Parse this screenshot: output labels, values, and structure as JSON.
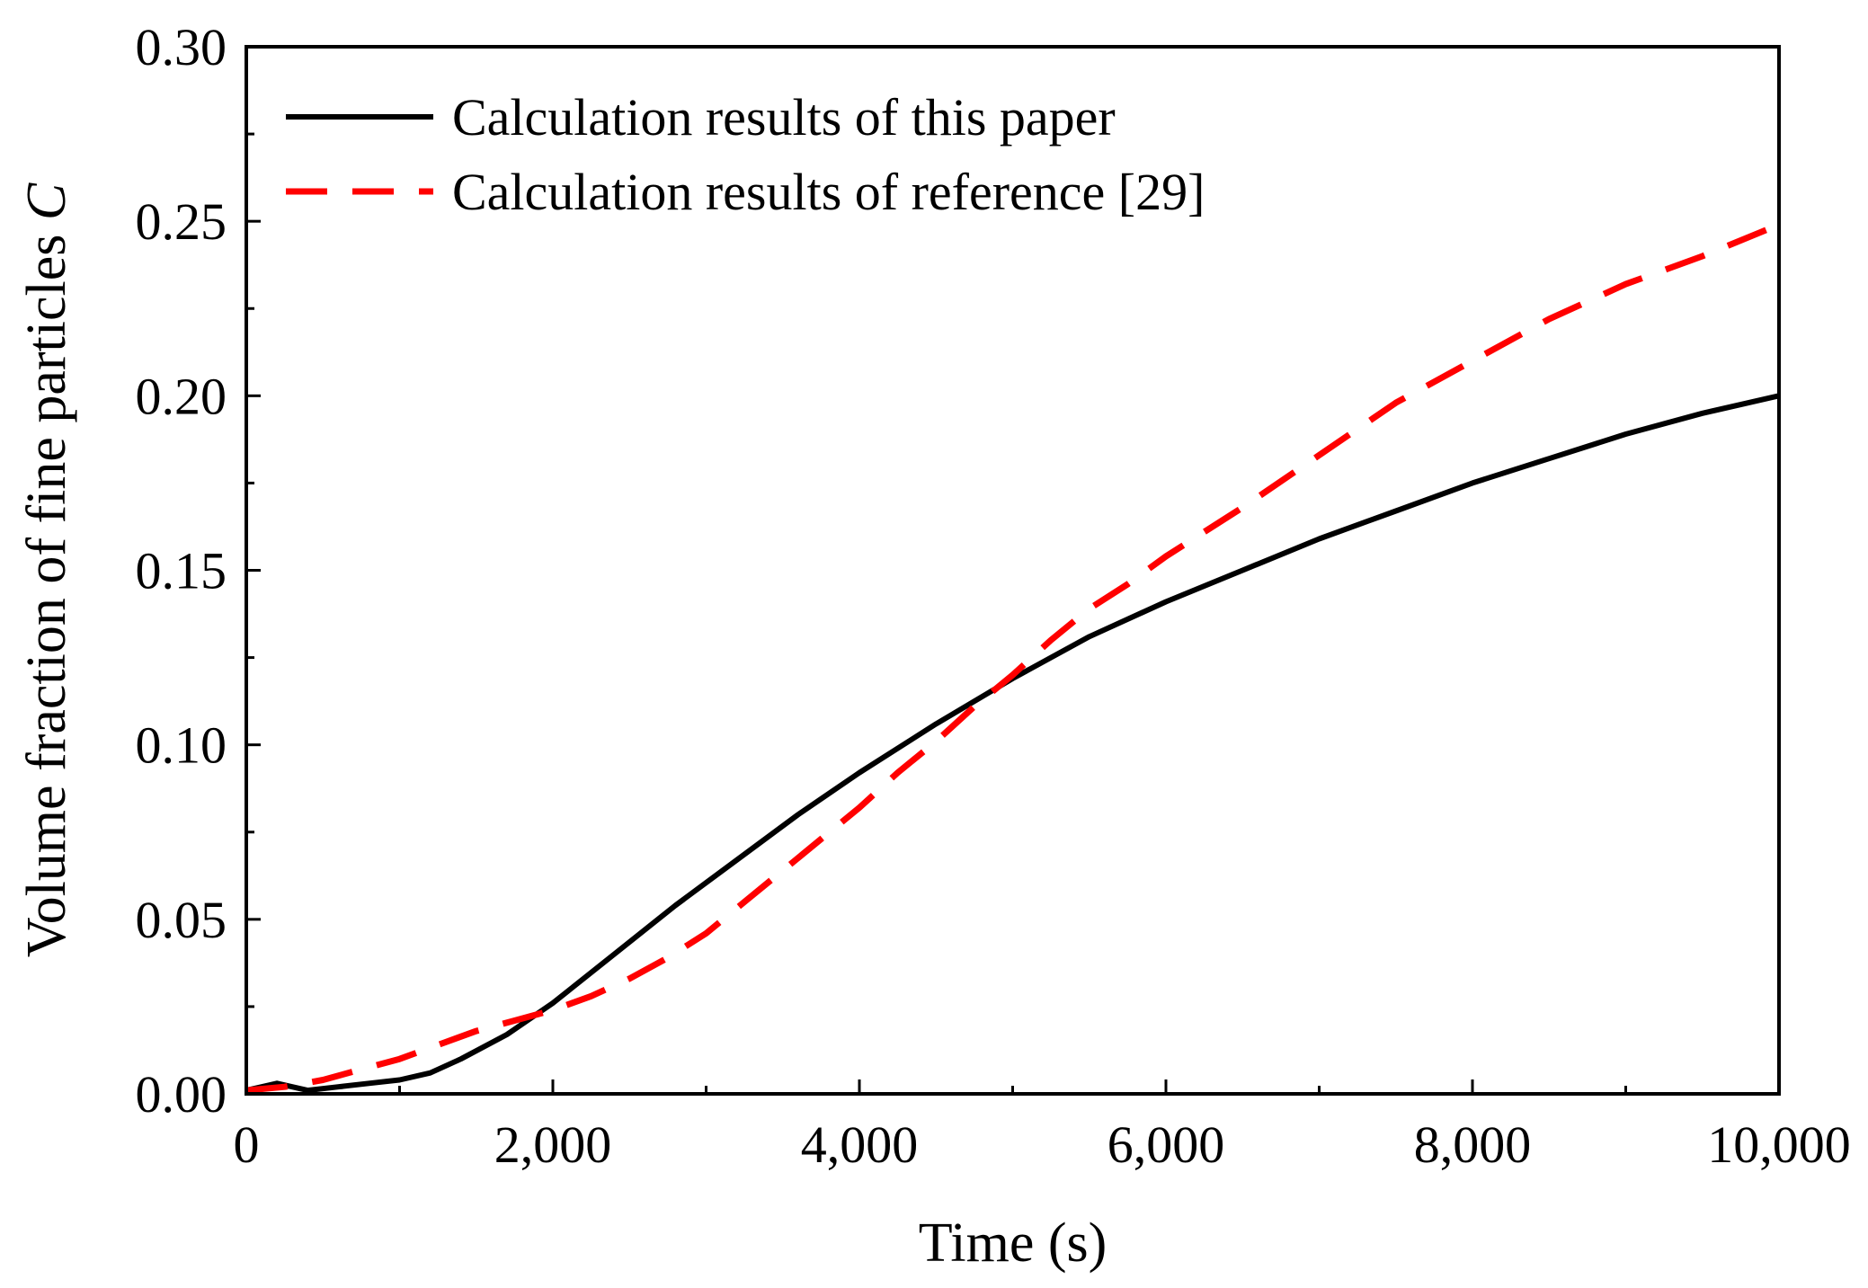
{
  "chart_data": {
    "type": "line",
    "title": "",
    "xlabel": "Time (s)",
    "ylabel": "Volume fraction of fine particles ",
    "ylabel_italic": "C",
    "xlim": [
      0,
      10000
    ],
    "ylim": [
      0,
      0.3
    ],
    "x_ticks": [
      0,
      2000,
      4000,
      6000,
      8000,
      10000
    ],
    "x_tick_labels": [
      "0",
      "2,000",
      "4,000",
      "6,000",
      "8,000",
      "10,000"
    ],
    "y_ticks": [
      0,
      0.05,
      0.1,
      0.15,
      0.2,
      0.25,
      0.3
    ],
    "y_tick_labels": [
      "0.00",
      "0.05",
      "0.10",
      "0.15",
      "0.20",
      "0.25",
      "0.30"
    ],
    "grid": false,
    "legend_position": "top-left",
    "series": [
      {
        "name": "Calculation results of this paper",
        "color": "#000000",
        "style": "solid",
        "x": [
          0,
          100,
          200,
          300,
          400,
          600,
          800,
          1000,
          1200,
          1400,
          1700,
          2000,
          2400,
          2800,
          3200,
          3600,
          4000,
          4500,
          5000,
          5500,
          6000,
          6500,
          7000,
          7500,
          8000,
          8500,
          9000,
          9500,
          10000
        ],
        "values": [
          0.001,
          0.002,
          0.003,
          0.002,
          0.001,
          0.002,
          0.003,
          0.004,
          0.006,
          0.01,
          0.017,
          0.026,
          0.04,
          0.054,
          0.067,
          0.08,
          0.092,
          0.106,
          0.119,
          0.131,
          0.141,
          0.15,
          0.159,
          0.167,
          0.175,
          0.182,
          0.189,
          0.195,
          0.2
        ]
      },
      {
        "name": "Calculation results of  reference [29]",
        "color": "#ff0000",
        "style": "dashed",
        "x": [
          0,
          250,
          500,
          750,
          1000,
          1250,
          1500,
          1750,
          2000,
          2250,
          2500,
          2750,
          3000,
          3250,
          3500,
          3750,
          4000,
          4250,
          4500,
          4750,
          5000,
          5250,
          5500,
          5750,
          6000,
          6500,
          7000,
          7500,
          8000,
          8500,
          9000,
          9500,
          10000
        ],
        "values": [
          0.001,
          0.002,
          0.004,
          0.007,
          0.01,
          0.014,
          0.018,
          0.021,
          0.024,
          0.028,
          0.033,
          0.039,
          0.046,
          0.055,
          0.064,
          0.073,
          0.082,
          0.092,
          0.101,
          0.111,
          0.12,
          0.13,
          0.139,
          0.146,
          0.154,
          0.168,
          0.183,
          0.198,
          0.21,
          0.222,
          0.232,
          0.24,
          0.249
        ]
      }
    ]
  }
}
